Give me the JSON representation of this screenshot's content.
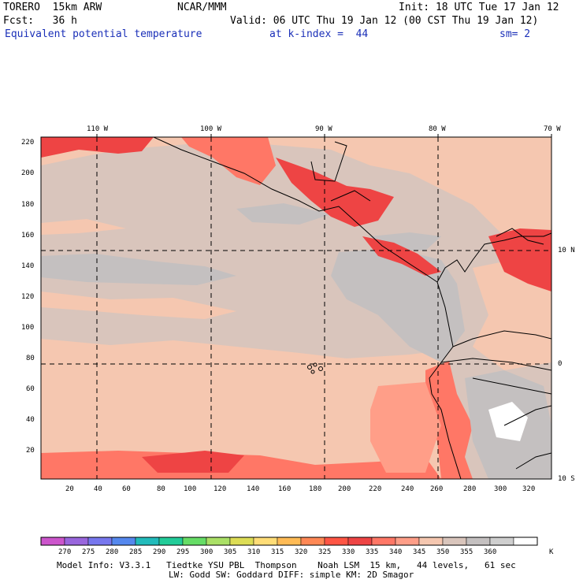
{
  "header": {
    "model": "TORERO  15km ARW",
    "center": "NCAR/MMM",
    "init": "Init: 18 UTC Tue 17 Jan 12",
    "fcst": "Fcst:   36 h",
    "valid": "Valid: 06 UTC Thu 19 Jan 12 (00 CST Thu 19 Jan 12)",
    "field": "Equivalent potential temperature",
    "level": "at k-index =  44",
    "smooth": "sm= 2"
  },
  "map": {
    "top_lon_labels": [
      "110 W",
      "100 W",
      "90 W",
      "80 W",
      "70 W"
    ],
    "right_lat_labels": [
      "10 N",
      "0",
      "10 S"
    ],
    "y_grid_ticks": [
      "220",
      "200",
      "180",
      "160",
      "140",
      "120",
      "100",
      "80",
      "60",
      "40",
      "20"
    ],
    "x_grid_ticks": [
      "20",
      "40",
      "60",
      "80",
      "100",
      "120",
      "140",
      "160",
      "180",
      "200",
      "220",
      "240",
      "260",
      "280",
      "300",
      "320"
    ]
  },
  "colorbar": {
    "colors": [
      "#cc55cc",
      "#9966dd",
      "#7777ee",
      "#5588ee",
      "#22bbbb",
      "#22cc99",
      "#66dd66",
      "#aae066",
      "#dddd55",
      "#ffdd77",
      "#ffbb55",
      "#ff8855",
      "#ff5544",
      "#ee4444",
      "#ff7766",
      "#ff9e88",
      "#f5c7b0",
      "#d9c5bc",
      "#c4c0c0",
      "#cfcfcf",
      "#ffffff"
    ],
    "labels": [
      "270",
      "275",
      "280",
      "285",
      "290",
      "295",
      "300",
      "305",
      "310",
      "315",
      "320",
      "325",
      "330",
      "335",
      "340",
      "345",
      "350",
      "355",
      "360"
    ],
    "unit": "K"
  },
  "footer": {
    "line1": "Model Info: V3.3.1   Tiedtke YSU PBL  Thompson    Noah LSM  15 km,   44 levels,   61 sec",
    "line2": "LW: Godd SW: Goddard DIFF: simple KM: 2D Smagor"
  }
}
